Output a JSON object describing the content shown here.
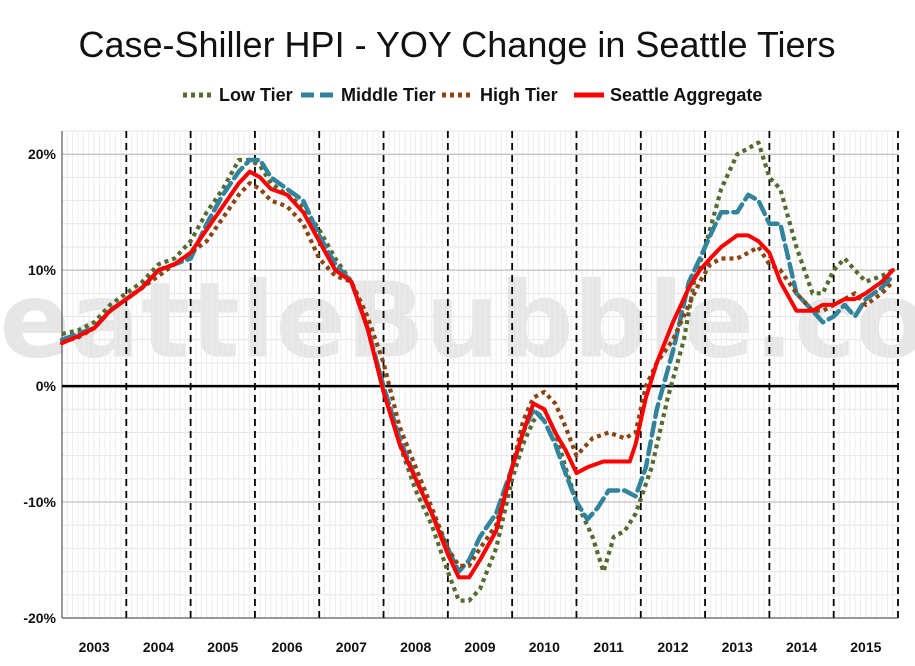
{
  "chart_data": {
    "type": "line",
    "title": "Case-Shiller HPI - YOY Change in Seattle Tiers",
    "watermark": "SeattleBubble.com",
    "legend_position": "top",
    "xlim": [
      2003.0,
      2016.0
    ],
    "ylim": [
      -20,
      22
    ],
    "x_ticks": [
      "2003",
      "2004",
      "2005",
      "2006",
      "2007",
      "2008",
      "2009",
      "2010",
      "2011",
      "2012",
      "2013",
      "2014",
      "2015"
    ],
    "y_ticks": [
      {
        "value": 20,
        "label": "20%"
      },
      {
        "value": 10,
        "label": "10%"
      },
      {
        "value": 0,
        "label": "0%"
      },
      {
        "value": -10,
        "label": "-10%"
      },
      {
        "value": -20,
        "label": "-20%"
      }
    ],
    "grid": true,
    "zero_line": true,
    "year_dashed_lines": true,
    "series": [
      {
        "name": "Low Tier",
        "color": "#556b2f",
        "style": "dotted",
        "x": [
          2003.0,
          2003.25,
          2003.5,
          2003.75,
          2004.0,
          2004.25,
          2004.5,
          2004.75,
          2005.0,
          2005.25,
          2005.5,
          2005.75,
          2005.92,
          2006.08,
          2006.25,
          2006.5,
          2006.75,
          2007.0,
          2007.25,
          2007.5,
          2007.75,
          2008.0,
          2008.25,
          2008.5,
          2008.75,
          2009.0,
          2009.17,
          2009.33,
          2009.5,
          2009.75,
          2010.0,
          2010.17,
          2010.33,
          2010.5,
          2010.67,
          2010.83,
          2011.0,
          2011.25,
          2011.42,
          2011.58,
          2011.75,
          2011.92,
          2012.17,
          2012.42,
          2012.67,
          2012.83,
          2013.0,
          2013.25,
          2013.5,
          2013.67,
          2013.83,
          2014.0,
          2014.17,
          2014.42,
          2014.67,
          2014.83,
          2015.0,
          2015.17,
          2015.33,
          2015.5,
          2015.75,
          2015.92
        ],
        "y": [
          4.5,
          4.8,
          5.5,
          7,
          8,
          9,
          10.5,
          11,
          12.5,
          15,
          17,
          19.5,
          19.5,
          19,
          17.5,
          16.5,
          15.5,
          13.5,
          11,
          9,
          5,
          0,
          -5,
          -9,
          -12,
          -16,
          -18.5,
          -18.5,
          -17.5,
          -14,
          -8,
          -5,
          -3,
          -2,
          -4,
          -7,
          -10,
          -13,
          -16,
          -13,
          -12.5,
          -11,
          -7,
          -1,
          4,
          9,
          12,
          17,
          20,
          20.5,
          21,
          18,
          17,
          12,
          8,
          8,
          10,
          11,
          10,
          9,
          9.5,
          10
        ]
      },
      {
        "name": "Middle Tier",
        "color": "#31849b",
        "style": "dashed",
        "x": [
          2003.0,
          2003.25,
          2003.5,
          2003.75,
          2004.0,
          2004.25,
          2004.5,
          2004.75,
          2005.0,
          2005.25,
          2005.5,
          2005.75,
          2005.92,
          2006.08,
          2006.25,
          2006.5,
          2006.75,
          2007.0,
          2007.25,
          2007.5,
          2007.75,
          2008.0,
          2008.25,
          2008.5,
          2008.75,
          2009.0,
          2009.17,
          2009.33,
          2009.5,
          2009.75,
          2010.0,
          2010.17,
          2010.33,
          2010.5,
          2010.67,
          2010.83,
          2011.0,
          2011.17,
          2011.33,
          2011.5,
          2011.75,
          2011.92,
          2012.08,
          2012.25,
          2012.5,
          2012.75,
          2012.92,
          2013.08,
          2013.25,
          2013.5,
          2013.67,
          2013.83,
          2014.0,
          2014.17,
          2014.42,
          2014.67,
          2014.83,
          2015.0,
          2015.17,
          2015.33,
          2015.5,
          2015.75,
          2015.92
        ],
        "y": [
          4,
          4.5,
          5,
          6.5,
          7.5,
          8.5,
          10,
          10.5,
          11,
          14,
          16.5,
          18.5,
          19.5,
          19.5,
          18,
          17,
          16,
          13,
          10.5,
          9,
          5,
          0,
          -4.5,
          -8,
          -11,
          -14,
          -16,
          -15,
          -13,
          -11,
          -7,
          -4,
          -2,
          -3,
          -5,
          -7.5,
          -10,
          -11.5,
          -10.5,
          -9,
          -9,
          -9.5,
          -7,
          -2,
          3,
          9,
          11,
          13,
          15,
          15,
          16.5,
          16,
          14,
          14,
          8,
          6.5,
          5.5,
          6,
          7,
          6,
          7.5,
          8.5,
          9.5
        ]
      },
      {
        "name": "High Tier",
        "color": "#8b4513",
        "style": "dotted",
        "x": [
          2003.0,
          2003.25,
          2003.5,
          2003.75,
          2004.0,
          2004.25,
          2004.5,
          2004.75,
          2005.0,
          2005.25,
          2005.5,
          2005.75,
          2005.92,
          2006.08,
          2006.25,
          2006.5,
          2006.75,
          2007.0,
          2007.25,
          2007.5,
          2007.75,
          2008.0,
          2008.25,
          2008.5,
          2008.75,
          2009.0,
          2009.17,
          2009.33,
          2009.5,
          2009.75,
          2010.0,
          2010.17,
          2010.33,
          2010.5,
          2010.67,
          2010.83,
          2011.0,
          2011.25,
          2011.5,
          2011.75,
          2011.92,
          2012.08,
          2012.25,
          2012.5,
          2012.75,
          2012.92,
          2013.08,
          2013.25,
          2013.5,
          2013.67,
          2013.83,
          2014.0,
          2014.17,
          2014.42,
          2014.67,
          2014.83,
          2015.0,
          2015.17,
          2015.33,
          2015.5,
          2015.75,
          2015.92
        ],
        "y": [
          3.8,
          4.2,
          5,
          6.5,
          7.5,
          8.5,
          9.5,
          10.5,
          11.5,
          12.5,
          14.5,
          16.5,
          17.5,
          17,
          16,
          15.5,
          14,
          11,
          9.5,
          9,
          6,
          2,
          -3.5,
          -7,
          -10.5,
          -14,
          -15.5,
          -15.5,
          -14,
          -12,
          -7,
          -3,
          -1,
          -0.5,
          -1.5,
          -3.5,
          -6,
          -4.5,
          -4,
          -4.5,
          -4,
          0,
          2,
          4,
          7,
          9,
          10.5,
          11,
          11,
          11.5,
          12,
          10.5,
          10,
          8,
          6.5,
          6.5,
          7,
          7.5,
          8,
          7,
          8,
          9
        ]
      },
      {
        "name": "Seattle Aggregate",
        "color": "#ff0000",
        "style": "solid",
        "x": [
          2003.0,
          2003.25,
          2003.5,
          2003.75,
          2004.0,
          2004.25,
          2004.5,
          2004.75,
          2005.0,
          2005.25,
          2005.5,
          2005.75,
          2005.92,
          2006.08,
          2006.25,
          2006.5,
          2006.75,
          2007.0,
          2007.25,
          2007.5,
          2007.75,
          2008.0,
          2008.25,
          2008.5,
          2008.75,
          2009.0,
          2009.17,
          2009.33,
          2009.5,
          2009.75,
          2010.0,
          2010.17,
          2010.33,
          2010.5,
          2010.67,
          2010.83,
          2011.0,
          2011.17,
          2011.42,
          2011.67,
          2011.83,
          2011.92,
          2012.08,
          2012.25,
          2012.5,
          2012.75,
          2012.92,
          2013.08,
          2013.25,
          2013.5,
          2013.67,
          2013.83,
          2014.0,
          2014.17,
          2014.42,
          2014.67,
          2014.83,
          2015.0,
          2015.17,
          2015.33,
          2015.5,
          2015.75,
          2015.92
        ],
        "y": [
          3.7,
          4.3,
          5,
          6.5,
          7.5,
          8.5,
          10,
          10.5,
          11.5,
          13.5,
          15.5,
          17.5,
          18.5,
          18,
          17,
          16.5,
          15,
          12.5,
          10,
          9,
          5,
          -0.5,
          -5,
          -8,
          -11,
          -14.5,
          -16.5,
          -16.5,
          -15,
          -12.5,
          -7,
          -4,
          -1.5,
          -2,
          -4,
          -5.5,
          -7.5,
          -7,
          -6.5,
          -6.5,
          -6.5,
          -5,
          -1,
          2,
          5.5,
          8.5,
          10,
          11,
          12,
          13,
          13,
          12.5,
          11.5,
          9,
          6.5,
          6.5,
          7,
          7,
          7.5,
          7.5,
          8,
          9,
          10
        ]
      }
    ]
  }
}
